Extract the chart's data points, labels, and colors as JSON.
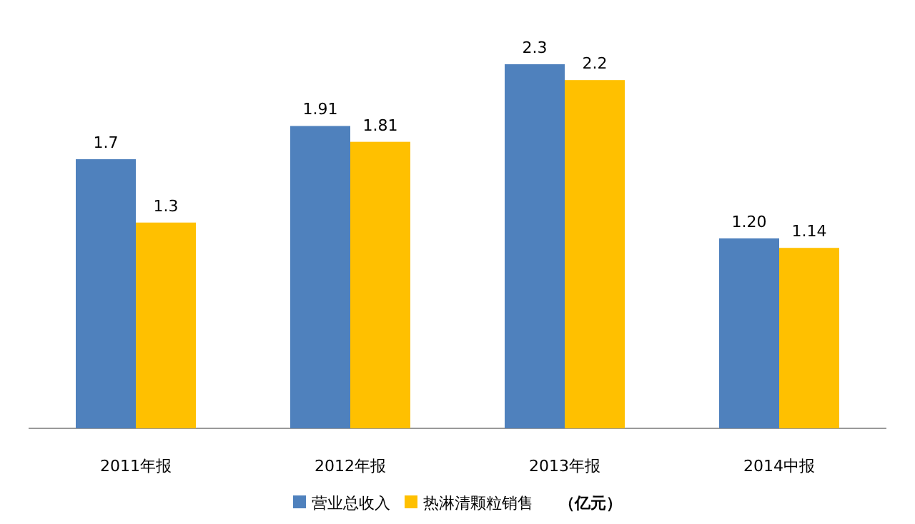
{
  "chart_data": {
    "type": "bar",
    "categories": [
      "2011年报",
      "2012年报",
      "2013年报",
      "2014中报"
    ],
    "series": [
      {
        "name": "营业总收入",
        "color": "#4f81bd",
        "values": [
          1.7,
          1.91,
          2.3,
          1.2
        ],
        "value_labels": [
          "1.7",
          "1.91",
          "2.3",
          "1.20"
        ]
      },
      {
        "name": "热淋清颗粒销售",
        "color": "#ffc000",
        "values": [
          1.3,
          1.81,
          2.2,
          1.14
        ],
        "value_labels": [
          "1.3",
          "1.81",
          "2.2",
          "1.14"
        ]
      }
    ],
    "legend": "bottom",
    "grid": false,
    "annotations": [
      "（亿元）"
    ]
  }
}
